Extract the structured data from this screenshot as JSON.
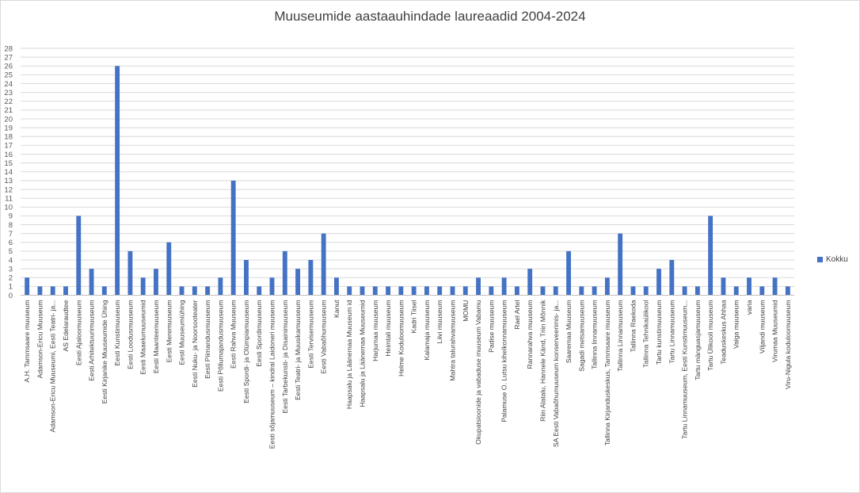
{
  "chart_data": {
    "type": "bar",
    "title": "Muuseumide aastaauhindade laureaadid 2004-2024",
    "xlabel": "",
    "ylabel": "",
    "ylim": [
      0,
      28
    ],
    "yticks": [
      0,
      1,
      2,
      3,
      4,
      5,
      6,
      7,
      8,
      9,
      10,
      11,
      12,
      13,
      14,
      15,
      16,
      17,
      18,
      19,
      20,
      21,
      22,
      23,
      24,
      25,
      26,
      27,
      28
    ],
    "grid": true,
    "legend_position": "right",
    "series_color": "#4472c4",
    "categories": [
      "A.H. Tammsaare muuseum",
      "Adamson-Ericu Muuseum",
      "Adamson-Ericu Muuseumi, Eesti Teatri- ja...",
      "AS Edelaraudtee",
      "Eesti Ajaloomuuseum",
      "Eesti Arhitektuurimuuseum",
      "Eesti Kirjanike Muuseumide Ühing",
      "Eesti Kunstimuuseum",
      "Eesti Loodusmuuseum",
      "Eesti Maaelumuuseumid",
      "Eesti Maanteemuuseum",
      "Eesti Meremuuseum",
      "Eesti Muuseumiühing",
      "Eesti Nuku- ja Noorsooteater",
      "Eesti Piimandusmuuseum",
      "Eesti Põllumajandusmuuseum",
      "Eesti Rahva Muuseum",
      "Eesti Spordi- ja Olümpiamuuseum",
      "Eesti Spordimuuseum",
      "Eesti sõjamuuseum – kindral Laidoneri muuseum",
      "Eesti Tarbekunsti- ja Disainimuuseum",
      "Eesti Teatri- ja Muusikamuuseum",
      "Eesti Tervisemuuseum",
      "Eesti Vabaõhumuuseum",
      "Kanut",
      "Haapsalu ja Läänemaa Muuseum id",
      "Haapsalu ja Läänemaa Muuseumid",
      "Harjumaa muuseum",
      "Heimtali muuseum",
      "Helme Koduloomuuseum",
      "Kadri Tiisel",
      "Kalamaja muuseum",
      "Liivi muuseum",
      "Mahtra talurahvamuuseum",
      "MOMU",
      "Okupatsioonide ja vabaduse muuseum Vabamu",
      "Padise muuseum",
      "Palamuse O. Lutsu kihelkonnamuuseum",
      "Rael Artel",
      "Rannarahva muuseum",
      "Riin Alatalu, Hannele Känd, Triin Mõnnik",
      "SA Eesti Vabaõhumuuseum konserveerimis- ja...",
      "Saaremaa Muuseum",
      "Sagadi metsamuuseum",
      "Tallinna linnamuuseum",
      "Tallinna Kirjanduskeskus, Tammsaare muuseum",
      "Tallinna Linnamuuseum",
      "Tallinna Raekoda",
      "Tallinna Tehnikaülikool",
      "Tartu kunstimuuseum",
      "Tartu Linnamuuseum",
      "Tartu Linnamuuseum, Eesti Kunstimuuseum...",
      "Tartu mänguasjamuuseum",
      "Tartu Ülikooli muuseum",
      "Teaduskeskus Ahhaa",
      "Valga muuseum",
      "varia",
      "Viljandi muuseum",
      "Virumaa Muuseumid",
      "Viru-Nigula koduloomuuseum"
    ],
    "series": [
      {
        "name": "Kokku",
        "values": [
          2,
          1,
          1,
          1,
          9,
          3,
          1,
          26,
          5,
          2,
          3,
          6,
          1,
          1,
          1,
          2,
          13,
          4,
          1,
          2,
          5,
          3,
          4,
          7,
          2,
          1,
          1,
          1,
          1,
          1,
          1,
          1,
          1,
          1,
          1,
          2,
          1,
          2,
          1,
          3,
          1,
          1,
          5,
          1,
          1,
          2,
          7,
          1,
          1,
          3,
          4,
          1,
          1,
          9,
          2,
          1,
          2,
          1,
          2,
          1
        ]
      }
    ]
  }
}
